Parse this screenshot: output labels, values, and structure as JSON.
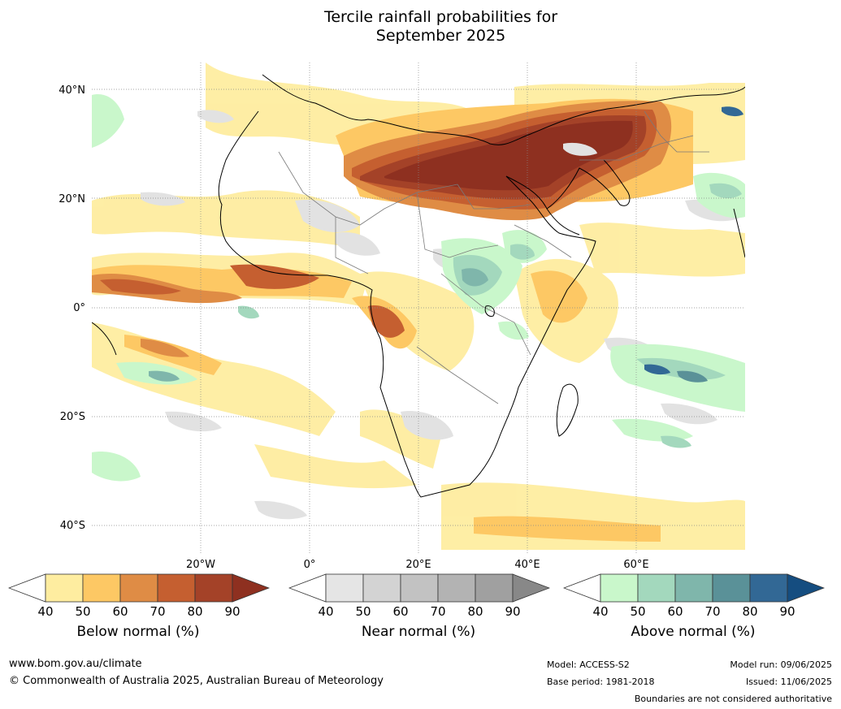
{
  "title_line1": "Tercile rainfall probabilities for",
  "title_line2": "September 2025",
  "lat_labels": [
    "40°N",
    "20°N",
    "0°",
    "20°S",
    "40°S"
  ],
  "lon_labels": [
    "20°W",
    "0°",
    "20°E",
    "40°E",
    "60°E"
  ],
  "colorbars": [
    {
      "title": "Below normal (%)",
      "ticks": [
        "40",
        "50",
        "60",
        "70",
        "80",
        "90"
      ],
      "colors": [
        "#ffffff",
        "#feeda0",
        "#fdc864",
        "#df8c45",
        "#c55f30",
        "#a44228",
        "#8e3020"
      ]
    },
    {
      "title": "Near normal (%)",
      "ticks": [
        "40",
        "50",
        "60",
        "70",
        "80",
        "90"
      ],
      "colors": [
        "#ffffff",
        "#e5e5e5",
        "#d3d3d3",
        "#c2c2c2",
        "#b3b3b3",
        "#a0a0a0",
        "#888888"
      ]
    },
    {
      "title": "Above normal (%)",
      "ticks": [
        "40",
        "50",
        "60",
        "70",
        "80",
        "90"
      ],
      "colors": [
        "#ffffff",
        "#c9f7cb",
        "#a3d8bd",
        "#7fb6ab",
        "#5a9198",
        "#326895",
        "#154d80"
      ]
    }
  ],
  "footer": {
    "url": "www.bom.gov.au/climate",
    "copyright": "© Commonwealth of Australia 2025, Australian Bureau of Meteorology",
    "model": "Model: ACCESS-S2",
    "base_period": "Base period: 1981-2018",
    "model_run": "Model run: 09/06/2025",
    "issued": "Issued: 11/06/2025",
    "disclaimer": "Boundaries are not considered authoritative"
  }
}
